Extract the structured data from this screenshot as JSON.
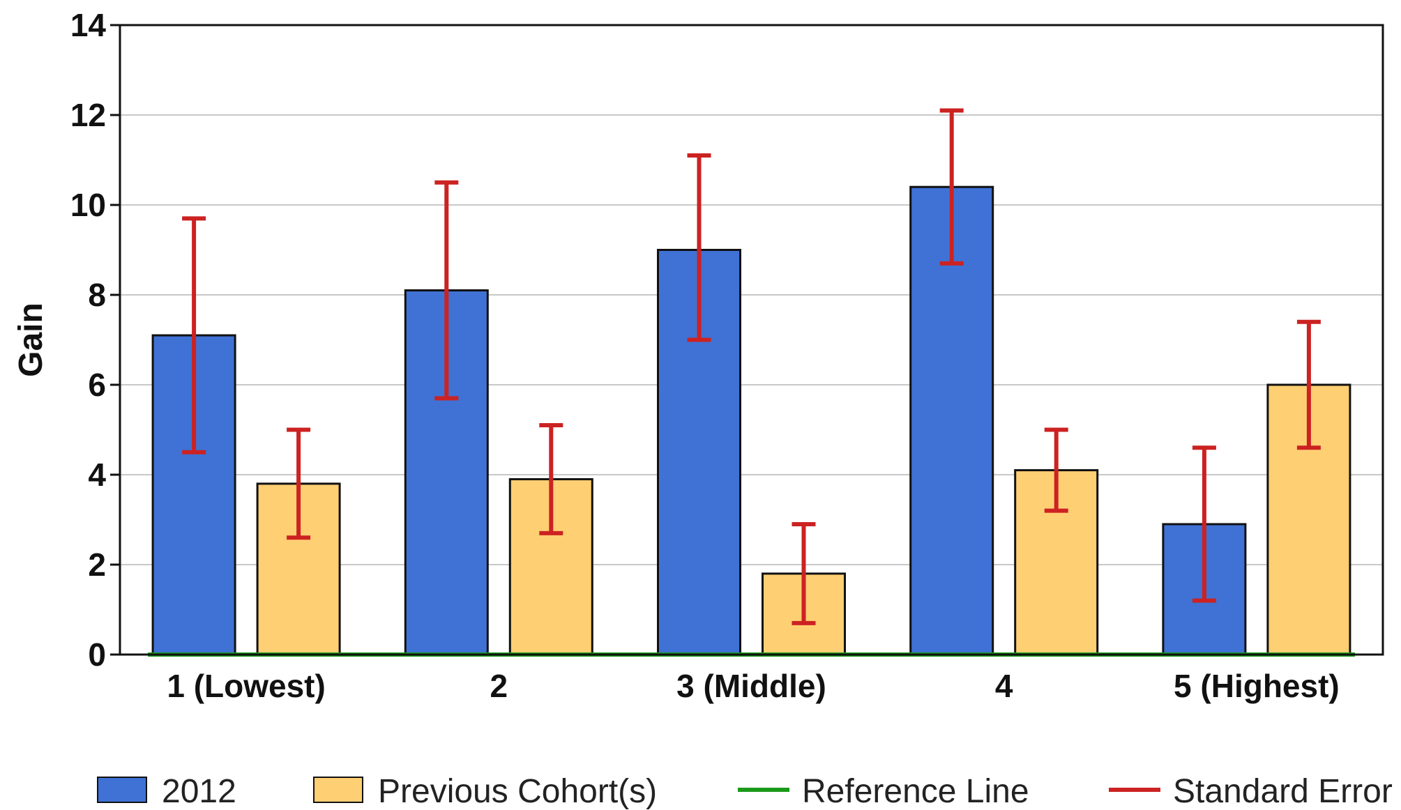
{
  "chart_data": {
    "type": "bar",
    "ylabel": "Gain",
    "xlabel": "",
    "ylim": [
      0,
      14
    ],
    "yticks": [
      "0",
      "2",
      "4",
      "6",
      "8",
      "10",
      "12",
      "14"
    ],
    "grid": true,
    "legend_position": "bottom",
    "categories": [
      "1 (Lowest)",
      "2",
      "3 (Middle)",
      "4",
      "5 (Highest)"
    ],
    "series": [
      {
        "name": "2012",
        "color": "#3f72d4",
        "values": [
          7.1,
          8.1,
          9.0,
          10.4,
          2.9
        ],
        "error_low": [
          4.5,
          5.7,
          7.0,
          8.7,
          1.2
        ],
        "error_high": [
          9.7,
          10.5,
          11.1,
          12.1,
          4.6
        ]
      },
      {
        "name": "Previous Cohort(s)",
        "color": "#ffcf73",
        "values": [
          3.8,
          3.9,
          1.8,
          4.1,
          6.0
        ],
        "error_low": [
          2.6,
          2.7,
          0.7,
          3.2,
          4.6
        ],
        "error_high": [
          5.0,
          5.1,
          2.9,
          5.0,
          7.4
        ]
      }
    ],
    "reference_line": {
      "name": "Reference Line",
      "value": 0,
      "color": "#1a9a1a"
    },
    "error_bars": {
      "name": "Standard Error",
      "color": "#cc2222"
    },
    "legend": [
      "2012",
      "Previous Cohort(s)",
      "Reference Line",
      "Standard Error"
    ]
  }
}
